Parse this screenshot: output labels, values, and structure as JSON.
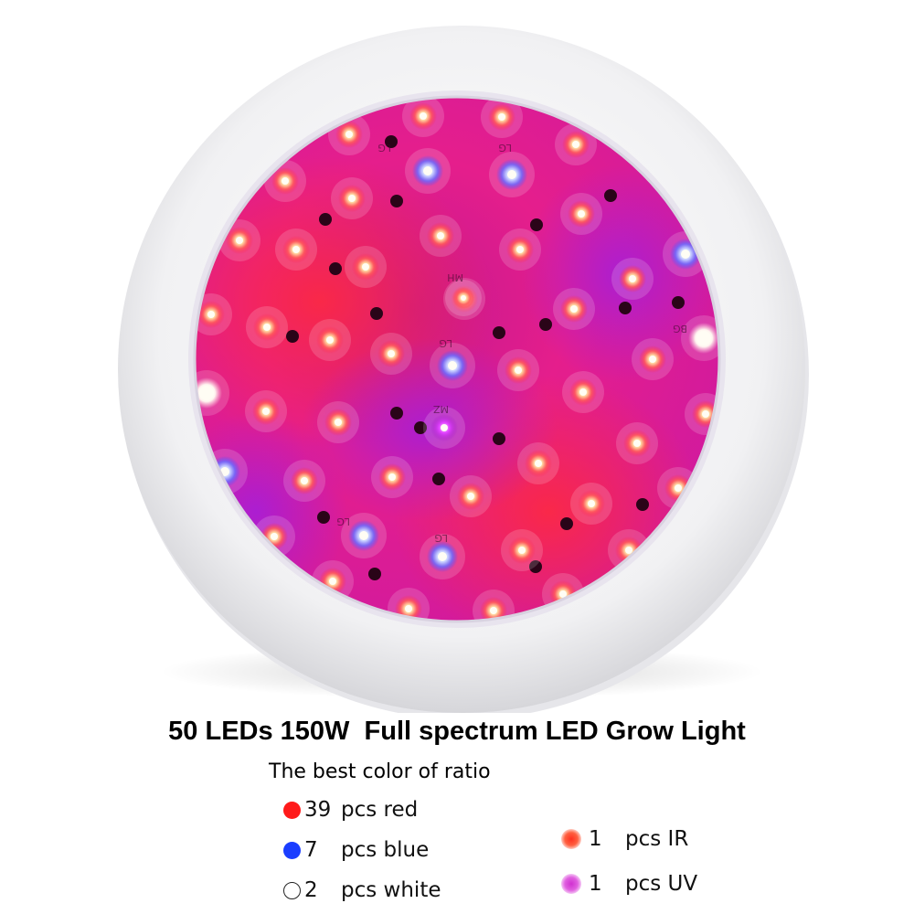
{
  "title": "50 LEDs 150W  Full spectrum LED Grow Light",
  "subtitle": "The best color of ratio",
  "legend": [
    {
      "count": "39",
      "text": "pcs red",
      "color": "#ff1a1a",
      "style": "solid"
    },
    {
      "count": "7",
      "text": "pcs blue",
      "color": "#1a3dff",
      "style": "solid"
    },
    {
      "count": "2",
      "text": "pcs white",
      "color": "#ffffff",
      "style": "outline"
    },
    {
      "count": "1",
      "text": "pcs IR",
      "color": "#ff5040",
      "style": "glow"
    },
    {
      "count": "1",
      "text": "pcs UV",
      "color": "#e040d8",
      "style": "glow"
    }
  ],
  "pcb_labels": [
    "LG",
    "LG",
    "MH",
    "LG",
    "MZ",
    "LG",
    "LG",
    "BG"
  ],
  "colors": {
    "housing": "#f4f4f6",
    "panel_magenta": "#e81fa0",
    "panel_red": "#ff1f3c",
    "panel_purple": "#b020d8"
  }
}
